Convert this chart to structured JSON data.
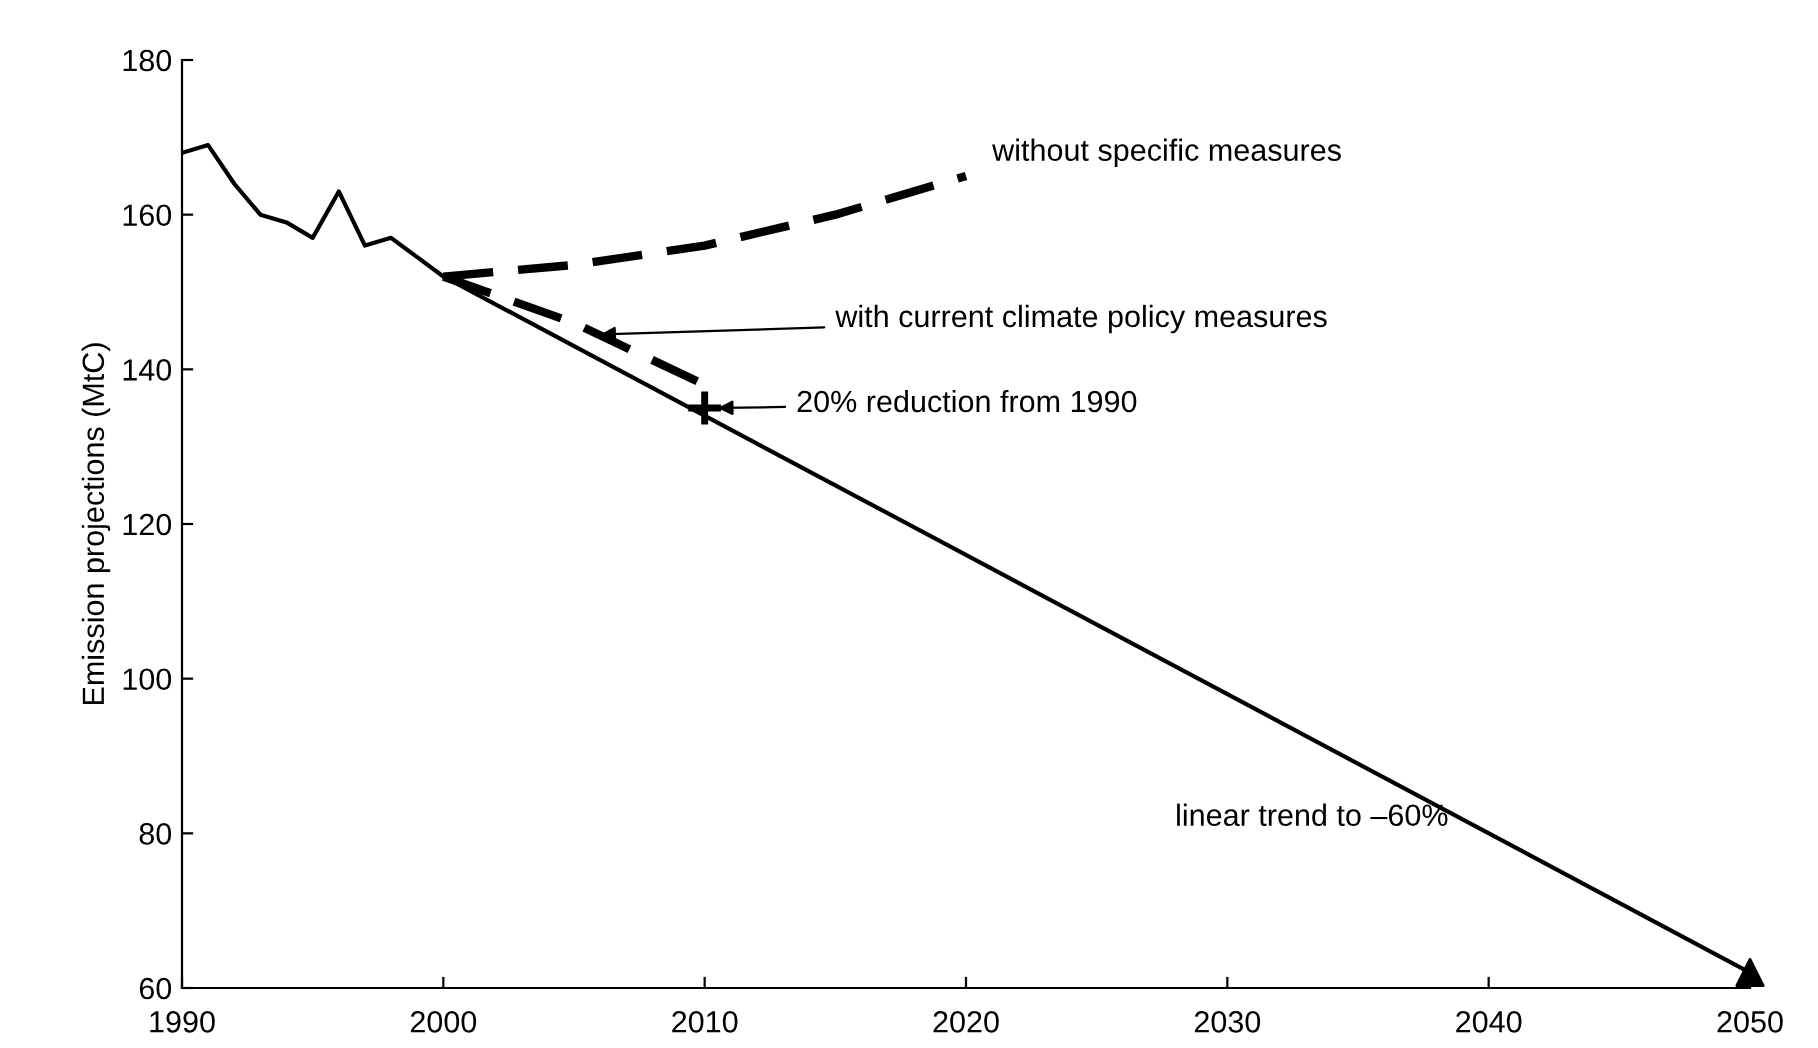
{
  "chart_data": {
    "type": "line",
    "ylabel": "Emission projections (MtC)",
    "xlim": [
      1990,
      2050
    ],
    "xticks": [
      1990,
      2000,
      2010,
      2020,
      2030,
      2040,
      2050
    ],
    "ylim": [
      60,
      180
    ],
    "yticks": [
      60,
      80,
      100,
      120,
      140,
      160,
      180
    ],
    "grid": false,
    "legend": false,
    "series": [
      {
        "color": "#000000",
        "x": [
          1990,
          1991,
          1992,
          1993,
          1994,
          1995,
          1996,
          1997,
          1998,
          1999,
          2000,
          2050
        ],
        "values": [
          168,
          169,
          164,
          160,
          159,
          157,
          163,
          156,
          157,
          154.5,
          152,
          62
        ],
        "line_style": "solid"
      },
      {
        "color": "#000000",
        "x": [
          2000,
          2005,
          2010,
          2015,
          2020
        ],
        "values": [
          152,
          153.5,
          156,
          160,
          165
        ],
        "line_style": "dashed"
      },
      {
        "color": "#000000",
        "x": [
          2000,
          2005,
          2010
        ],
        "values": [
          152,
          146,
          138
        ],
        "line_style": "dashed"
      },
      {
        "type": "scatter",
        "color": "#000000",
        "x": [
          2010
        ],
        "values": [
          135
        ],
        "marker": "cross"
      },
      {
        "type": "scatter",
        "color": "#000000",
        "x": [
          2050
        ],
        "values": [
          62
        ],
        "marker": "triangle"
      }
    ],
    "annotations": [
      {
        "text": "without specific measures",
        "x": 2020,
        "y": 165
      },
      {
        "text": "with current climate policy measures",
        "x": 2006,
        "y": 144.5
      },
      {
        "text": "20% reduction from 1990",
        "x": 2010.5,
        "y": 135
      },
      {
        "text": "linear trend to –60%",
        "x": 2040,
        "y": 80
      }
    ]
  }
}
